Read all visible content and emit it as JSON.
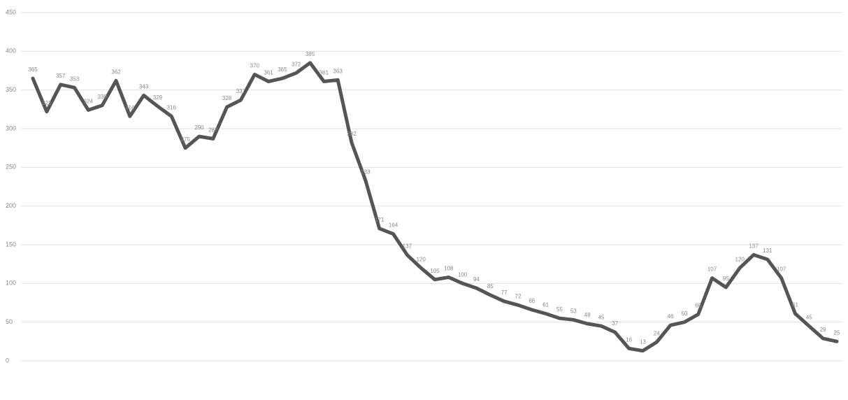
{
  "chart_data": {
    "type": "line",
    "categories": [
      null,
      null,
      null,
      null,
      null,
      null,
      null,
      null,
      null,
      null,
      null,
      null,
      null,
      null,
      null,
      null,
      null,
      null,
      null,
      null,
      null,
      null,
      null,
      null,
      null,
      null,
      null,
      null,
      null,
      null,
      null,
      null,
      null,
      null,
      null,
      null,
      null,
      null,
      null,
      null,
      null,
      null,
      null,
      null,
      null,
      null,
      null,
      null,
      null,
      null,
      null,
      null,
      null,
      null,
      null,
      null,
      null,
      null,
      null
    ],
    "series": [
      {
        "color": "#555555",
        "values": [
          365,
          322,
          357,
          353,
          324,
          330,
          362,
          316,
          343,
          329,
          316,
          275,
          290,
          287,
          328,
          337,
          370,
          361,
          365,
          372,
          385,
          361,
          363,
          282,
          233,
          171,
          164,
          137,
          120,
          105,
          108,
          100,
          94,
          85,
          77,
          72,
          66,
          61,
          55,
          53,
          48,
          45,
          37,
          16,
          13,
          24,
          46,
          50,
          60,
          107,
          95,
          120,
          137,
          131,
          107,
          61,
          45,
          29,
          25
        ]
      }
    ],
    "ylim": [
      0,
      450
    ],
    "yticks": [
      0,
      50,
      100,
      150,
      200,
      250,
      300,
      350,
      400,
      450
    ],
    "grid": true
  }
}
